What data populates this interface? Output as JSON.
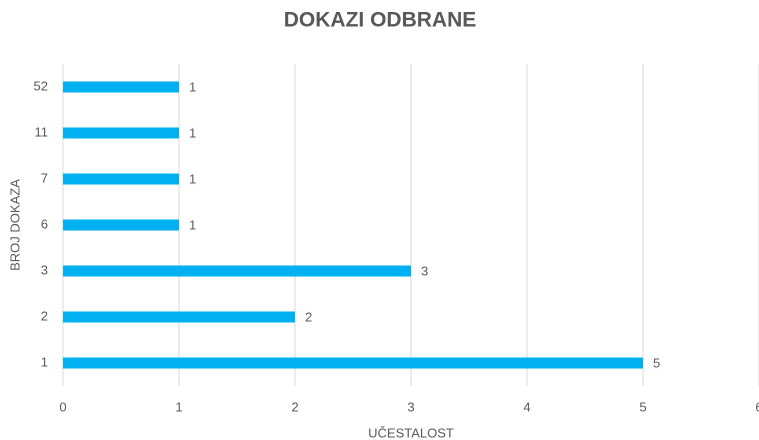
{
  "chart_data": {
    "type": "barh",
    "title": "DOKAZI ODBRANE",
    "xlabel": "UČESTALOST",
    "ylabel": "BROJ DOKAZA",
    "categories": [
      "1",
      "2",
      "3",
      "6",
      "7",
      "11",
      "52"
    ],
    "values": [
      5,
      2,
      3,
      1,
      1,
      1,
      1
    ],
    "color": "#00b0f0",
    "xlim": [
      0,
      6
    ],
    "xticks": [
      0,
      1,
      2,
      3,
      4,
      5,
      6
    ],
    "grid": true
  }
}
